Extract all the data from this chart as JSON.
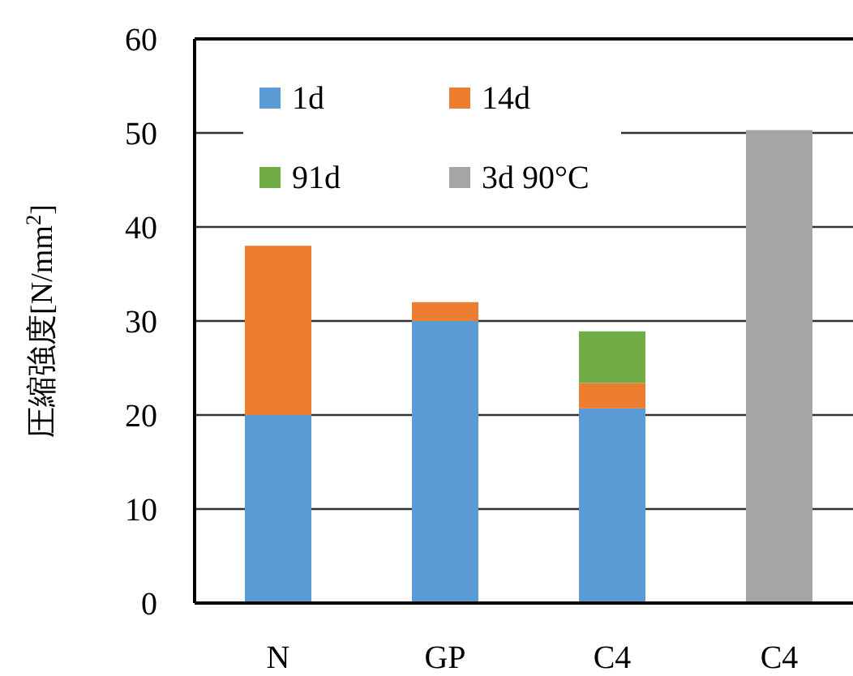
{
  "chart_data": {
    "type": "bar",
    "stacked": true,
    "ylabel": "圧縮強度[N/mm$^{2}$]",
    "categories": [
      "N",
      "GP",
      "C4",
      "C4"
    ],
    "series": [
      {
        "name": "1d",
        "color": "#5b9bd5",
        "values": [
          20,
          30,
          20.7,
          null
        ]
      },
      {
        "name": "14d",
        "color": "#ed7d31",
        "values": [
          18,
          2,
          2.7,
          null
        ]
      },
      {
        "name": "91d",
        "color": "#70ad47",
        "values": [
          null,
          null,
          5.5,
          null
        ]
      },
      {
        "name": "3d 90°C",
        "color": "#a5a5a5",
        "values": [
          null,
          null,
          null,
          50.3
        ]
      }
    ],
    "ylim": [
      0,
      60
    ],
    "yticks": [
      0,
      10,
      20,
      30,
      40,
      50,
      60
    ],
    "grid": "y",
    "legend": "top left"
  }
}
